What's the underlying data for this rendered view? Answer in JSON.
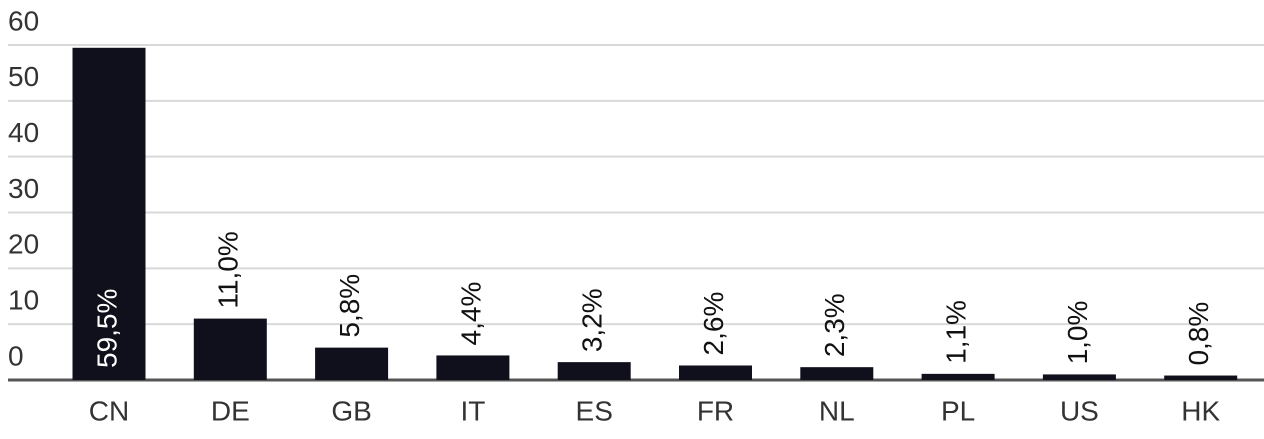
{
  "chart_data": {
    "type": "bar",
    "categories": [
      "CN",
      "DE",
      "GB",
      "IT",
      "ES",
      "FR",
      "NL",
      "PL",
      "US",
      "HK"
    ],
    "values": [
      59.5,
      11.0,
      5.8,
      4.4,
      3.2,
      2.6,
      2.3,
      1.1,
      1.0,
      0.8
    ],
    "value_labels": [
      "59,5%",
      "11,0%",
      "5,8%",
      "4,4%",
      "3,2%",
      "2,6%",
      "2,3%",
      "1,1%",
      "1,0%",
      "0,8%"
    ],
    "color": "#10101c",
    "ylim": [
      0,
      60
    ],
    "yticks": [
      0,
      10,
      20,
      30,
      40,
      50,
      60
    ],
    "grid": true
  }
}
